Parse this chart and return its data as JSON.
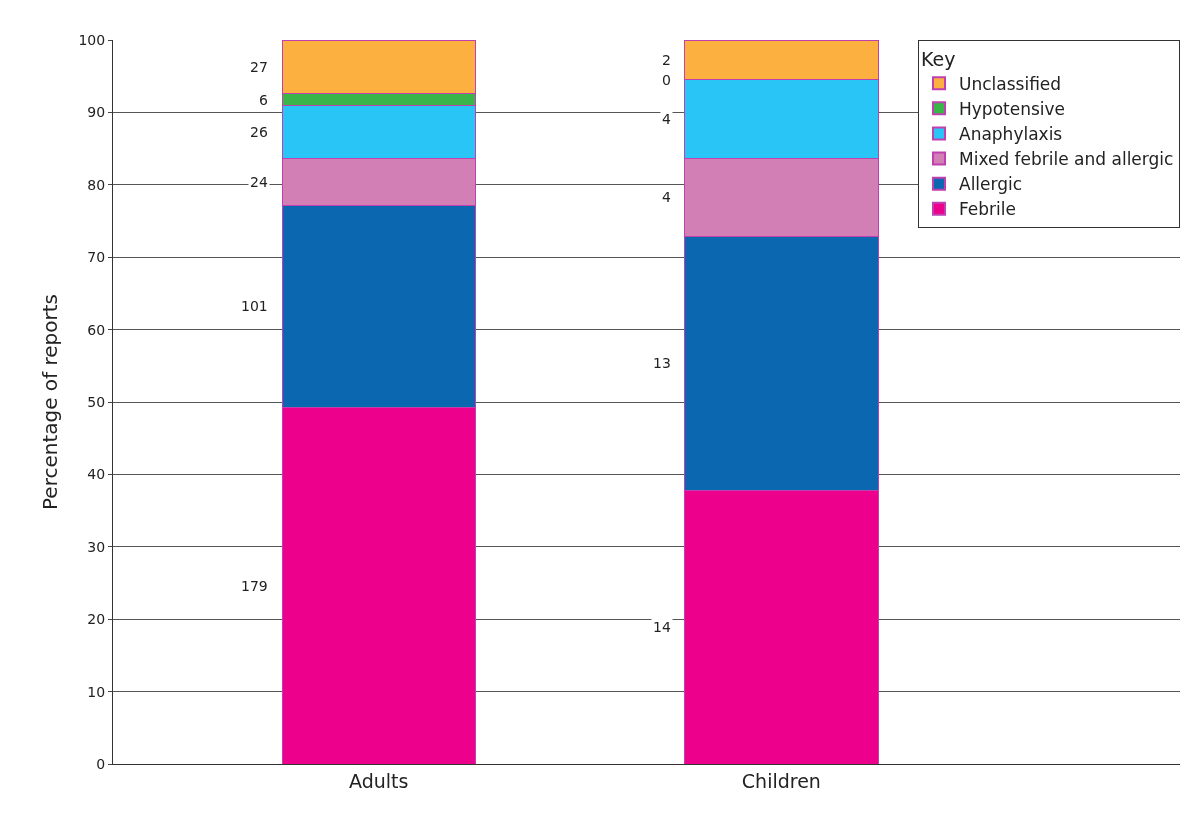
{
  "chart_data": {
    "type": "bar",
    "stacked": true,
    "ylabel": "Percentage of reports",
    "legend_title": "Key",
    "categories": [
      "Adults",
      "Children"
    ],
    "series": [
      {
        "name": "Febrile",
        "color": "#ec008c",
        "values": [
          49.3,
          37.8
        ]
      },
      {
        "name": "Allergic",
        "color": "#0a67b0",
        "values": [
          27.8,
          35.1
        ]
      },
      {
        "name": "Mixed febrile and allergic",
        "color": "#d17fb5",
        "values": [
          6.6,
          10.8
        ]
      },
      {
        "name": "Anaphylaxis",
        "color": "#29c5f6",
        "values": [
          7.2,
          10.8
        ]
      },
      {
        "name": "Hypotensive",
        "color": "#39b54a",
        "values": [
          1.7,
          0
        ]
      },
      {
        "name": "Unclassified",
        "color": "#fbb040",
        "values": [
          7.4,
          5.5
        ]
      }
    ],
    "annotations": [
      "179",
      "14",
      "101",
      "13",
      "24",
      "4",
      "26",
      "4",
      "6",
      "0",
      "27",
      "2"
    ],
    "ylim": [
      0,
      100
    ],
    "yticks": [
      0,
      10,
      20,
      30,
      40,
      50,
      60,
      70,
      80,
      90,
      100
    ],
    "grid": "y",
    "legend": "top right"
  }
}
